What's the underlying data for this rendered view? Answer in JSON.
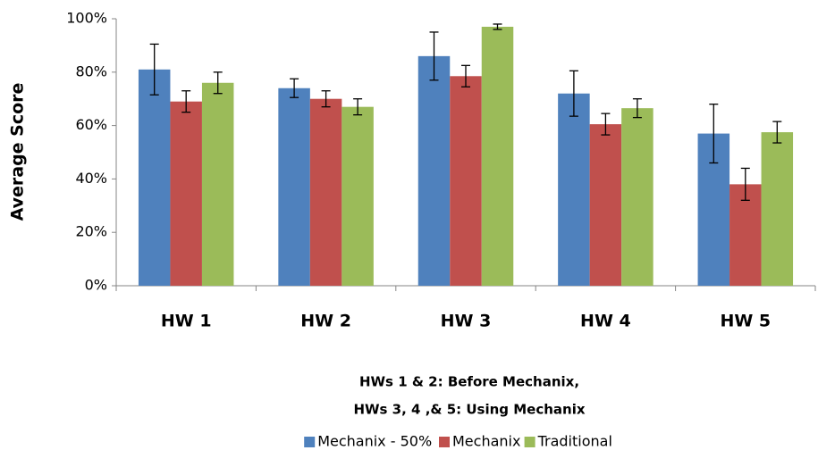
{
  "chart_data": {
    "type": "bar",
    "ylabel": "Average Score",
    "xlabel": [
      "HWs 1 & 2: Before Mechanix,",
      "HWs 3, 4 ,& 5: Using Mechanix"
    ],
    "categories": [
      "HW 1",
      "HW 2",
      "HW 3",
      "HW 4",
      "HW 5"
    ],
    "series": [
      {
        "name": "Mechanix - 50%",
        "color": "#4f81bd",
        "values": [
          81,
          74,
          86,
          72,
          57
        ],
        "errors": [
          9.5,
          3.5,
          9,
          8.5,
          11
        ]
      },
      {
        "name": "Mechanix",
        "color": "#c0504d",
        "values": [
          69,
          70,
          78.5,
          60.5,
          38
        ],
        "errors": [
          4,
          3,
          4,
          4,
          6
        ]
      },
      {
        "name": "Traditional",
        "color": "#9bbb59",
        "values": [
          76,
          67,
          97,
          66.5,
          57.5
        ],
        "errors": [
          4,
          3,
          1,
          3.5,
          4
        ]
      }
    ],
    "ylim": [
      0,
      100
    ],
    "yticks": [
      {
        "value": 0,
        "label": "0%"
      },
      {
        "value": 20,
        "label": "20%"
      },
      {
        "value": 40,
        "label": "40%"
      },
      {
        "value": 60,
        "label": "60%"
      },
      {
        "value": 80,
        "label": "80%"
      },
      {
        "value": 100,
        "label": "100%"
      }
    ],
    "grid": false,
    "legend": "bottom"
  }
}
